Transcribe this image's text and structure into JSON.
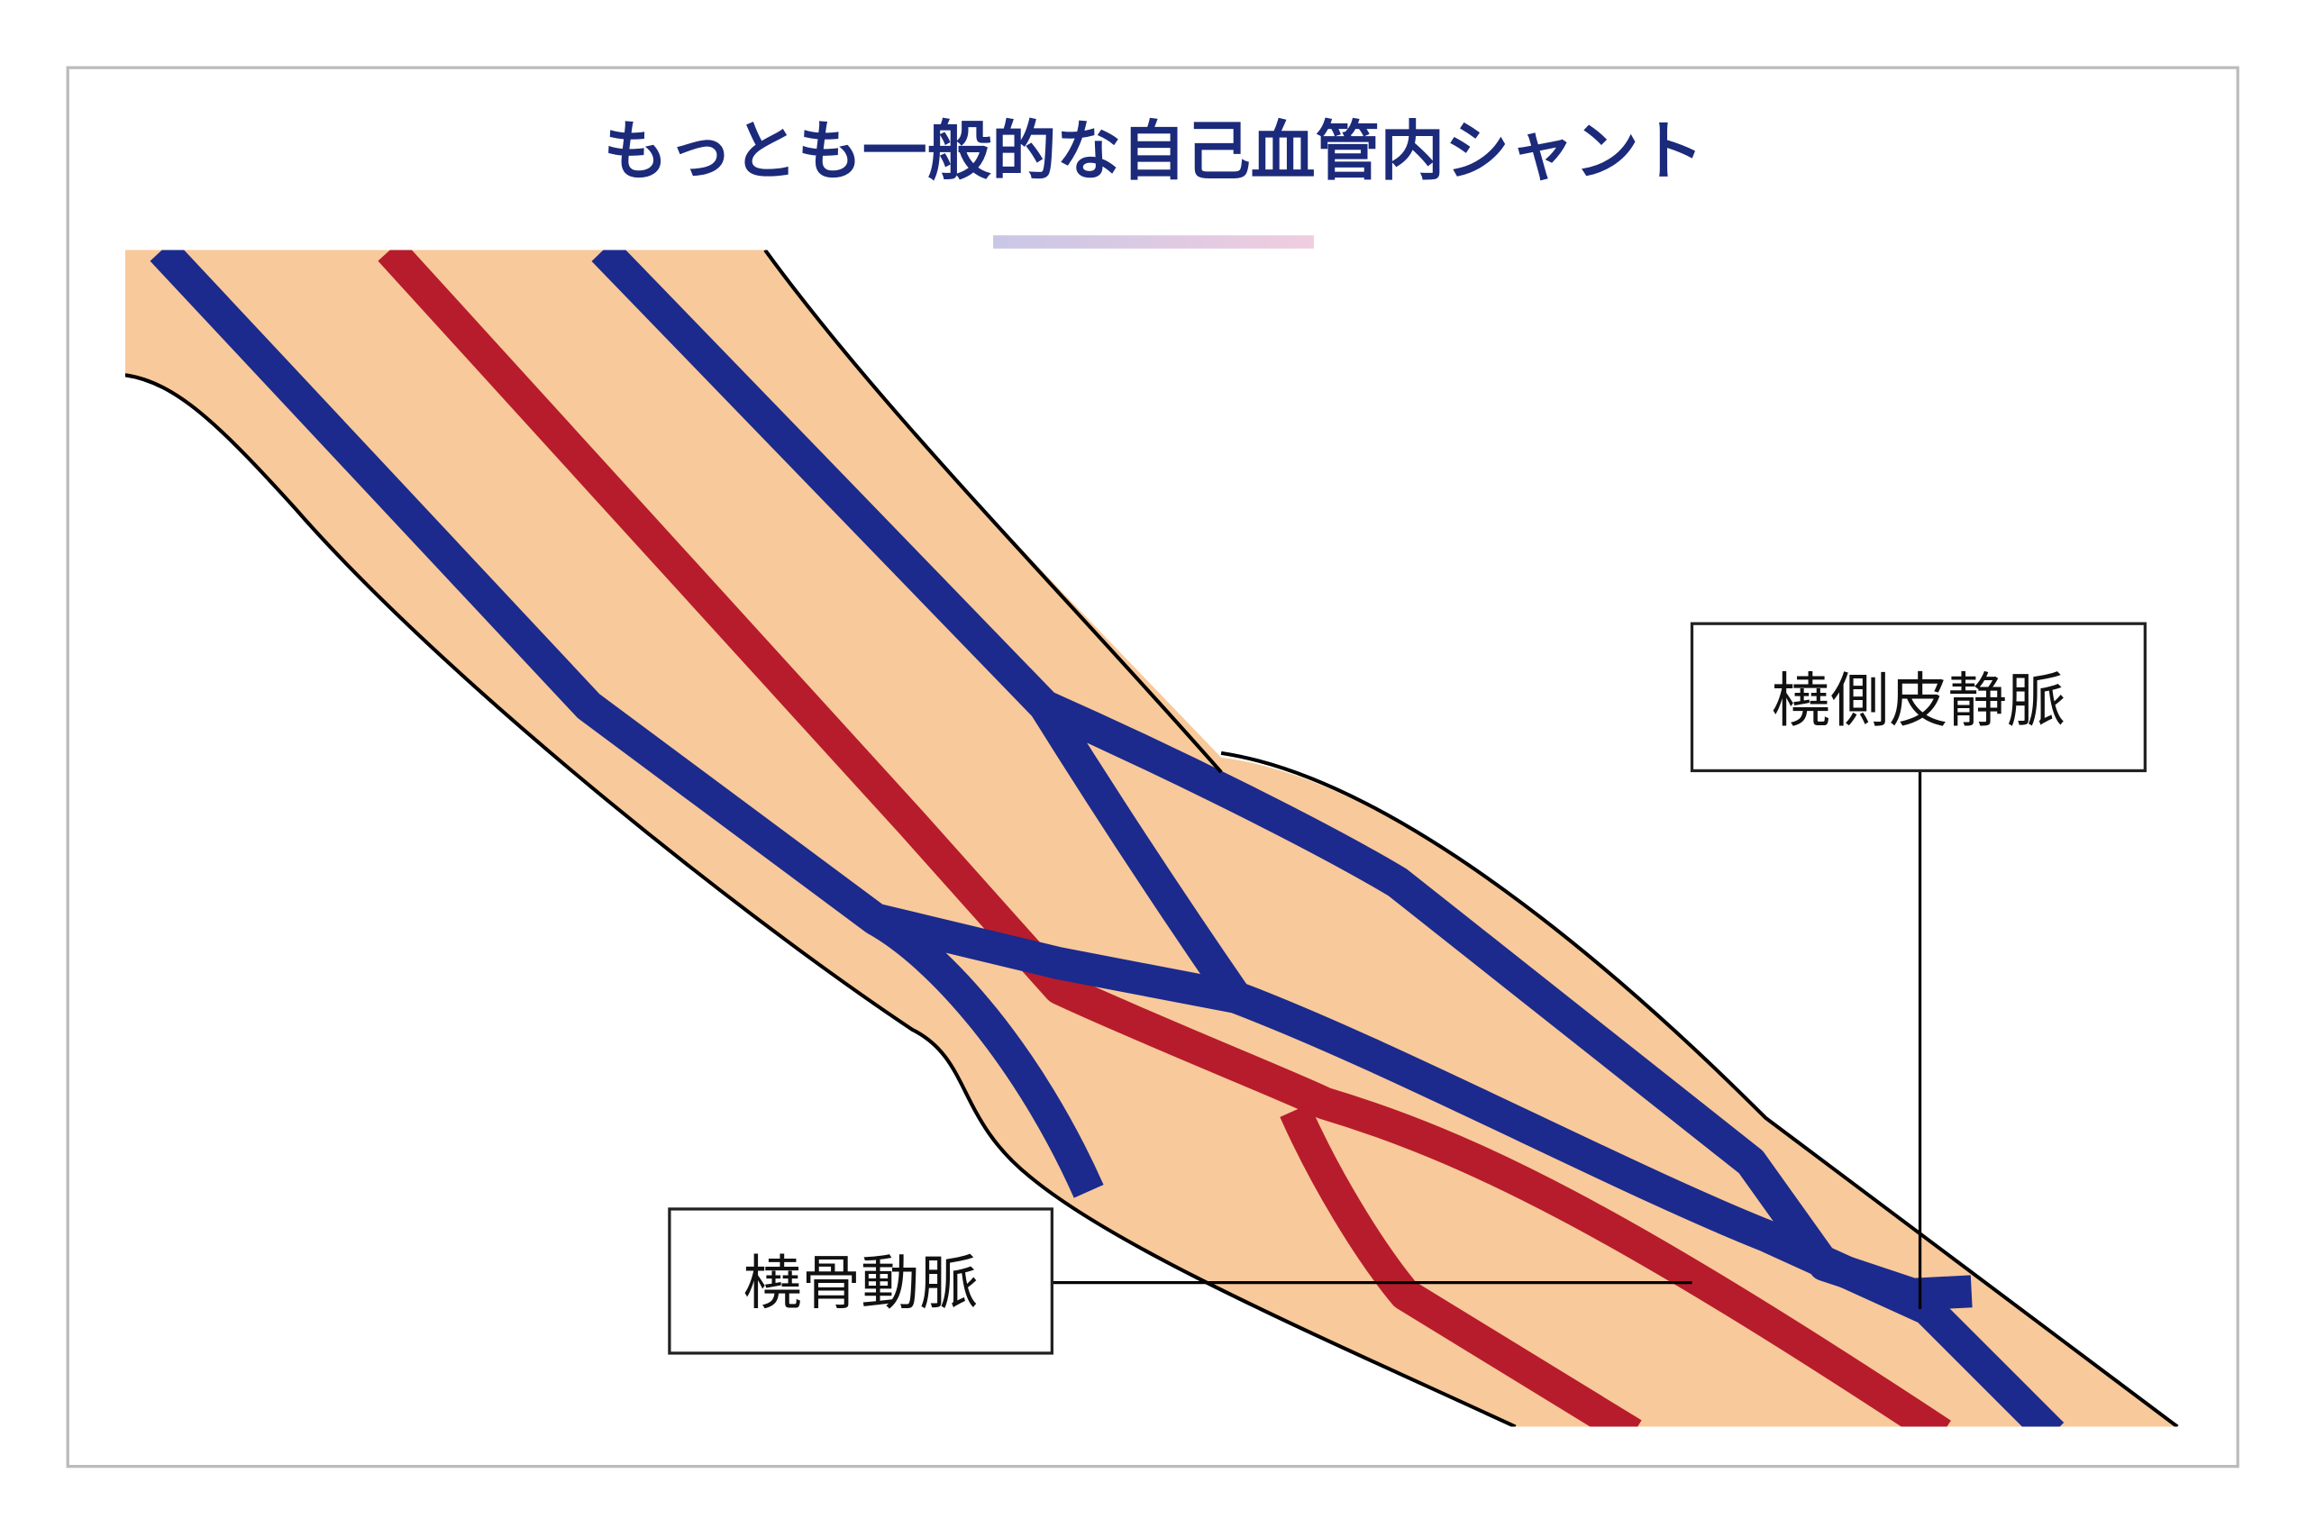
{
  "header": {
    "title": "もっとも一般的な自己血管内シャント"
  },
  "labels": [
    {
      "label": "橈側皮静脈"
    },
    {
      "label": "橈骨動脈"
    }
  ]
}
